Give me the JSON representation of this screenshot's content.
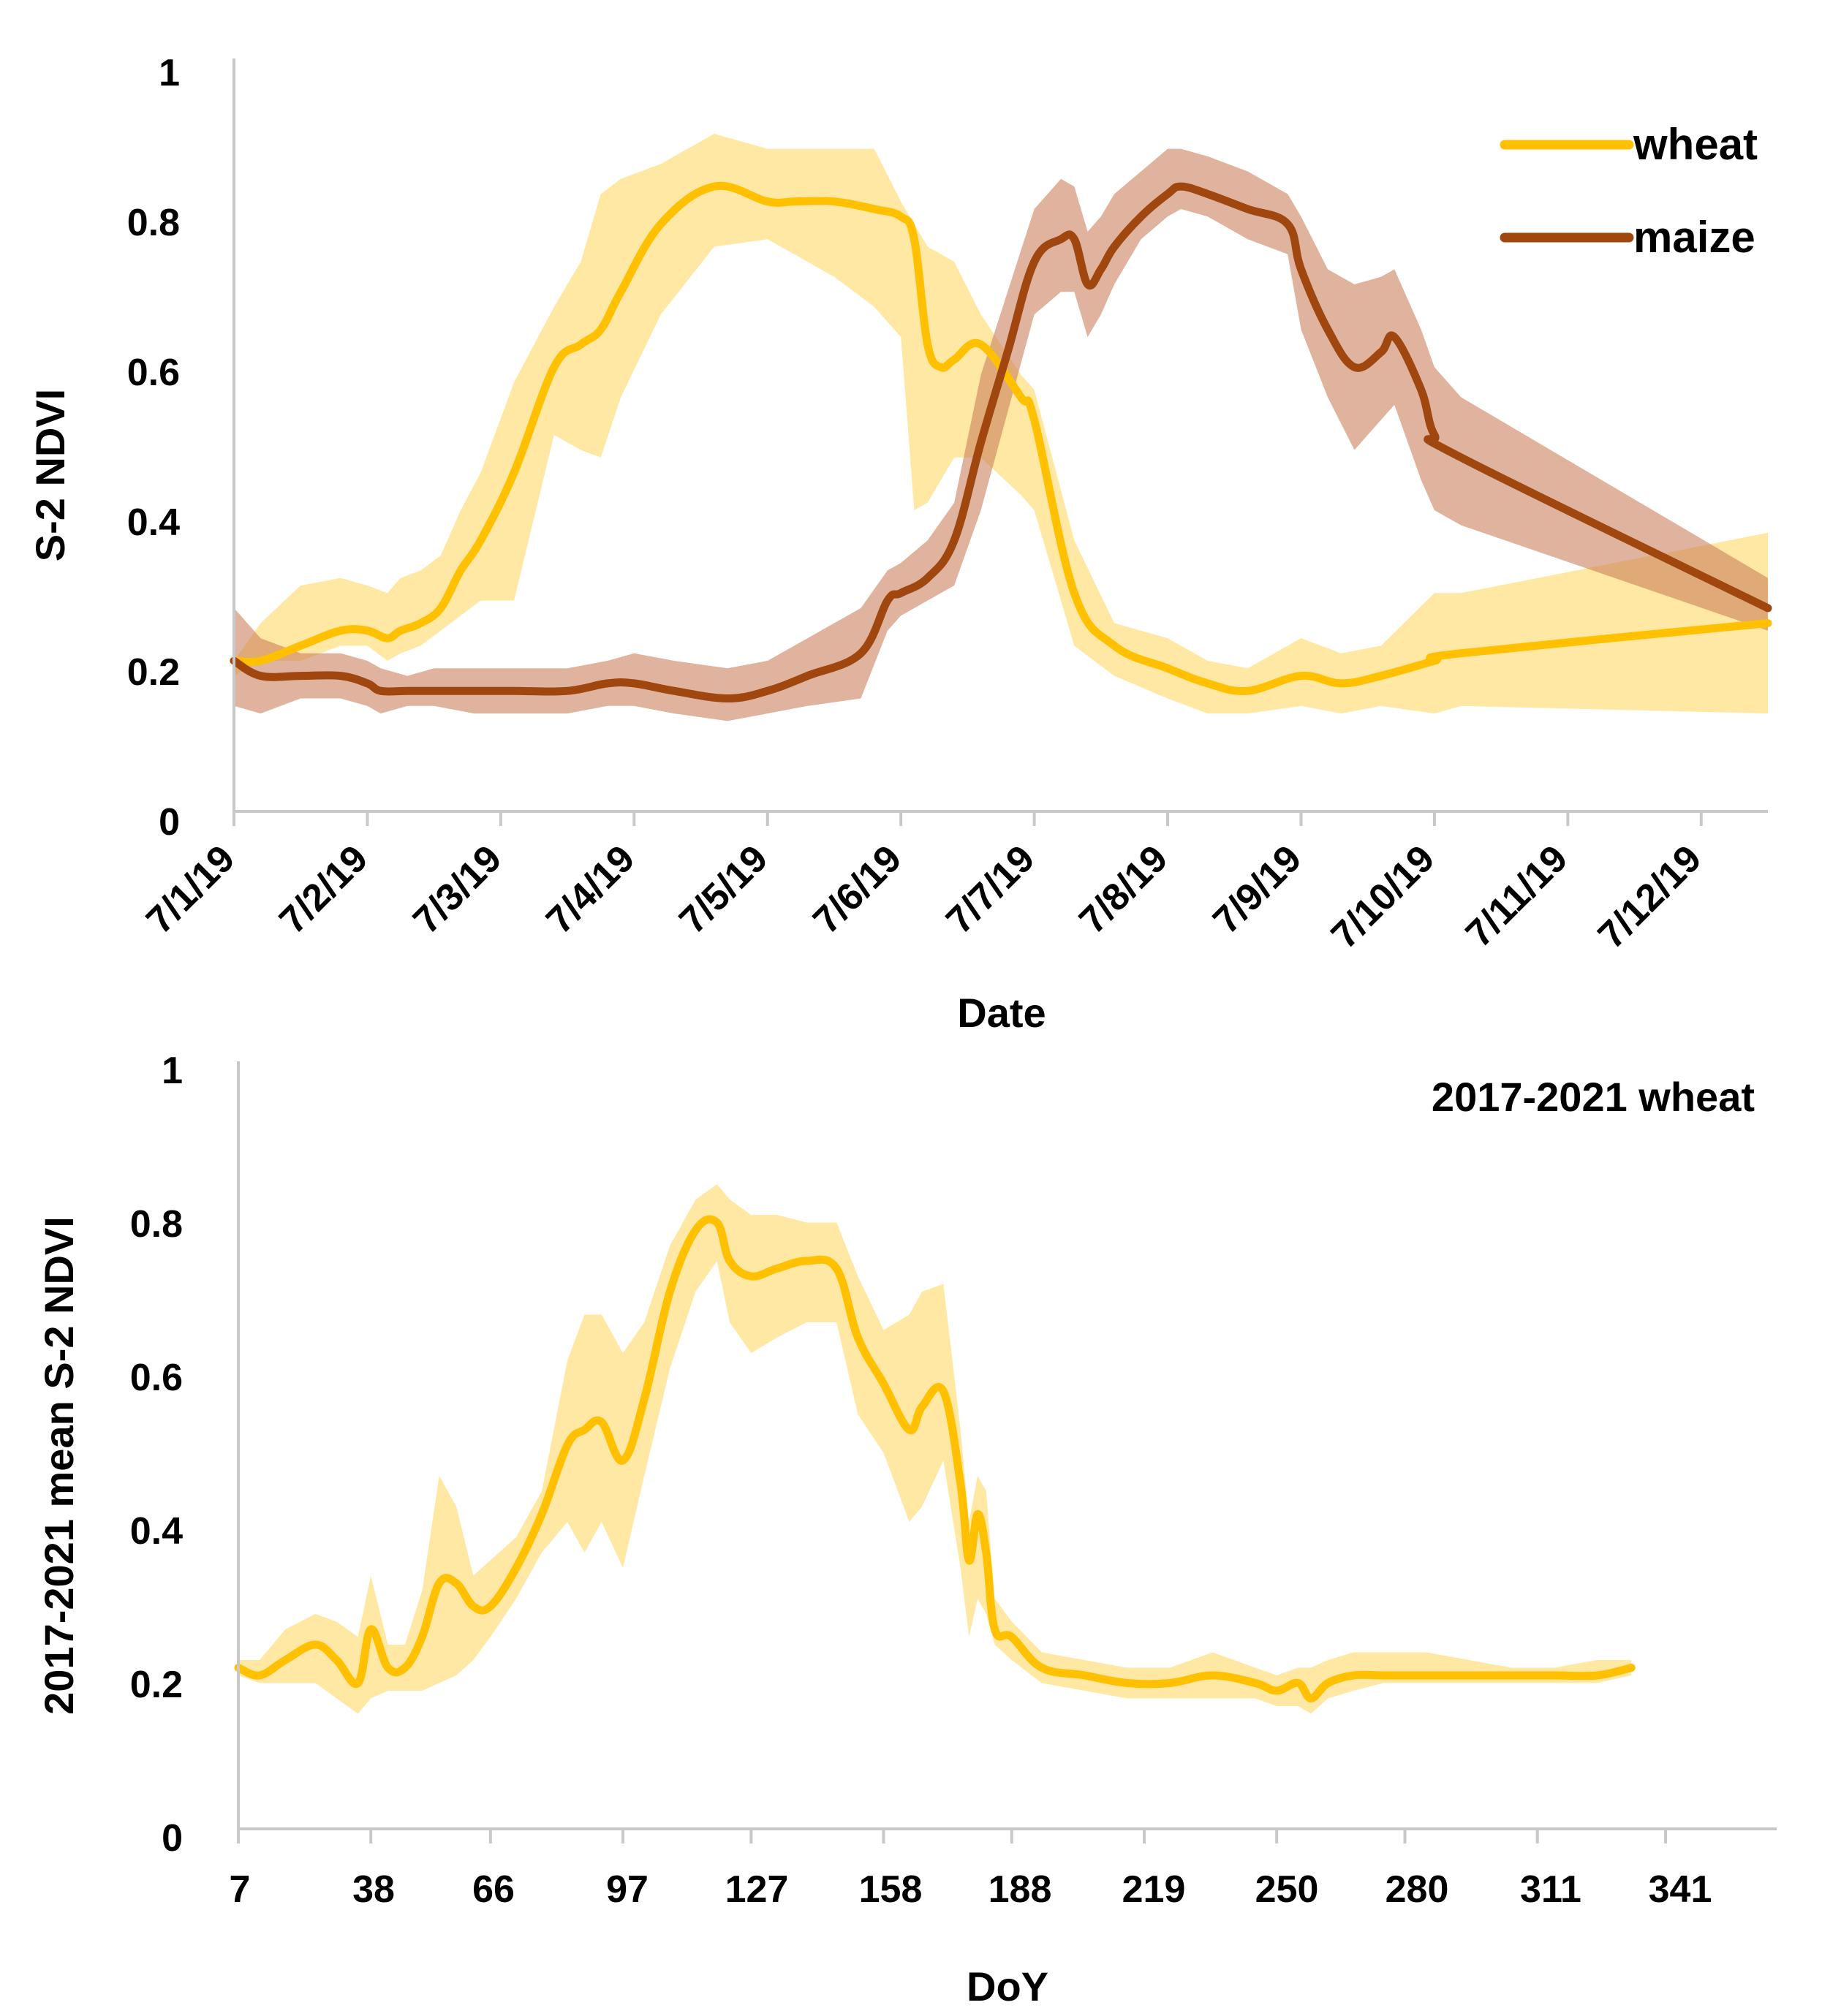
{
  "chart_data": [
    {
      "type": "area",
      "title": "",
      "xlabel": "Date",
      "ylabel": "S-2 NDVI",
      "ylim": [
        0,
        1
      ],
      "xlim": [
        0,
        11.5
      ],
      "x_ticks": [
        0,
        1,
        2,
        3,
        4,
        5,
        6,
        7,
        8,
        9,
        10,
        11
      ],
      "x_tick_labels": [
        "7/1/19",
        "7/2/19",
        "7/3/19",
        "7/4/19",
        "7/5/19",
        "7/6/19",
        "7/7/19",
        "7/8/19",
        "7/9/19",
        "7/10/19",
        "7/11/19",
        "7/12/19"
      ],
      "y_ticks": [
        0,
        0.2,
        0.4,
        0.6,
        0.8,
        1
      ],
      "y_tick_labels": [
        "0",
        "0.2",
        "0.4",
        "0.6",
        "0.8",
        "1"
      ],
      "legend": {
        "position": "top-right",
        "entries": [
          "wheat",
          "maize"
        ]
      },
      "series": [
        {
          "name": "wheat",
          "color": "#FFC000",
          "band_color": "#FFD966",
          "x": [
            0.0,
            0.2,
            0.5,
            0.8,
            1.0,
            1.15,
            1.25,
            1.4,
            1.55,
            1.7,
            1.85,
            2.1,
            2.4,
            2.6,
            2.75,
            2.9,
            3.2,
            3.6,
            4.0,
            4.2,
            4.5,
            4.8,
            5.0,
            5.1,
            5.2,
            5.3,
            5.4,
            5.6,
            5.9,
            6.0,
            6.3,
            6.6,
            7.0,
            7.3,
            7.6,
            8.0,
            8.3,
            8.6,
            9.0,
            9.2,
            11.5
          ],
          "values": [
            0.2,
            0.2,
            0.22,
            0.24,
            0.24,
            0.23,
            0.24,
            0.25,
            0.27,
            0.32,
            0.36,
            0.45,
            0.59,
            0.62,
            0.64,
            0.69,
            0.78,
            0.83,
            0.81,
            0.81,
            0.81,
            0.8,
            0.79,
            0.76,
            0.62,
            0.59,
            0.6,
            0.62,
            0.55,
            0.52,
            0.29,
            0.22,
            0.19,
            0.17,
            0.16,
            0.18,
            0.17,
            0.18,
            0.2,
            0.21,
            0.25
          ],
          "lower": [
            0.18,
            0.2,
            0.2,
            0.22,
            0.22,
            0.2,
            0.21,
            0.22,
            0.24,
            0.26,
            0.28,
            0.28,
            0.5,
            0.48,
            0.47,
            0.55,
            0.66,
            0.75,
            0.76,
            0.74,
            0.71,
            0.67,
            0.63,
            0.4,
            0.41,
            0.44,
            0.47,
            0.47,
            0.42,
            0.4,
            0.22,
            0.18,
            0.15,
            0.13,
            0.13,
            0.14,
            0.13,
            0.14,
            0.13,
            0.14,
            0.13
          ],
          "upper": [
            0.2,
            0.25,
            0.3,
            0.31,
            0.3,
            0.29,
            0.31,
            0.32,
            0.34,
            0.4,
            0.45,
            0.57,
            0.67,
            0.73,
            0.82,
            0.84,
            0.86,
            0.9,
            0.88,
            0.88,
            0.88,
            0.88,
            0.81,
            0.78,
            0.75,
            0.74,
            0.73,
            0.66,
            0.58,
            0.56,
            0.36,
            0.25,
            0.23,
            0.2,
            0.19,
            0.23,
            0.21,
            0.22,
            0.29,
            0.29,
            0.37
          ]
        },
        {
          "name": "maize",
          "color": "#A0470F",
          "band_color": "#C9805C",
          "x": [
            0.0,
            0.2,
            0.5,
            0.8,
            1.0,
            1.1,
            1.3,
            1.5,
            1.8,
            2.1,
            2.5,
            2.8,
            3.0,
            3.3,
            3.7,
            4.0,
            4.3,
            4.7,
            4.9,
            5.0,
            5.2,
            5.4,
            5.6,
            5.8,
            6.0,
            6.2,
            6.3,
            6.4,
            6.5,
            6.6,
            6.8,
            7.0,
            7.1,
            7.3,
            7.6,
            7.9,
            8.0,
            8.2,
            8.4,
            8.6,
            8.7,
            8.9,
            9.0,
            9.2,
            11.5
          ],
          "values": [
            0.2,
            0.18,
            0.18,
            0.18,
            0.17,
            0.16,
            0.16,
            0.16,
            0.16,
            0.16,
            0.16,
            0.17,
            0.17,
            0.16,
            0.15,
            0.16,
            0.18,
            0.21,
            0.28,
            0.29,
            0.31,
            0.36,
            0.49,
            0.61,
            0.73,
            0.76,
            0.76,
            0.7,
            0.72,
            0.75,
            0.79,
            0.82,
            0.83,
            0.82,
            0.8,
            0.78,
            0.72,
            0.64,
            0.59,
            0.61,
            0.63,
            0.56,
            0.5,
            0.47,
            0.27
          ],
          "lower": [
            0.14,
            0.13,
            0.15,
            0.15,
            0.14,
            0.13,
            0.14,
            0.14,
            0.13,
            0.13,
            0.13,
            0.14,
            0.14,
            0.13,
            0.12,
            0.13,
            0.14,
            0.15,
            0.24,
            0.26,
            0.28,
            0.3,
            0.4,
            0.53,
            0.66,
            0.69,
            0.69,
            0.63,
            0.66,
            0.7,
            0.76,
            0.79,
            0.8,
            0.79,
            0.76,
            0.74,
            0.64,
            0.55,
            0.48,
            0.52,
            0.54,
            0.44,
            0.4,
            0.38,
            0.24
          ],
          "upper": [
            0.27,
            0.23,
            0.21,
            0.21,
            0.2,
            0.19,
            0.18,
            0.19,
            0.19,
            0.19,
            0.19,
            0.2,
            0.21,
            0.2,
            0.19,
            0.2,
            0.23,
            0.27,
            0.32,
            0.33,
            0.36,
            0.41,
            0.58,
            0.69,
            0.8,
            0.84,
            0.83,
            0.77,
            0.79,
            0.82,
            0.85,
            0.88,
            0.88,
            0.87,
            0.85,
            0.82,
            0.79,
            0.72,
            0.7,
            0.71,
            0.72,
            0.64,
            0.59,
            0.55,
            0.31
          ]
        }
      ]
    },
    {
      "type": "area",
      "title": "2017-2021 wheat",
      "xlabel": "DoY",
      "ylabel": "2017-2021 mean  S-2  NDVI",
      "ylim": [
        0,
        1
      ],
      "xlim": [
        7,
        367
      ],
      "x_ticks": [
        7,
        38,
        66,
        97,
        127,
        158,
        188,
        219,
        250,
        280,
        311,
        341
      ],
      "x_tick_labels": [
        "7",
        "38",
        "66",
        "97",
        "127",
        "158",
        "188",
        "219",
        "250",
        "280",
        "311",
        "341"
      ],
      "y_ticks": [
        0,
        0.2,
        0.4,
        0.6,
        0.8,
        1
      ],
      "y_tick_labels": [
        "0",
        "0.2",
        "0.4",
        "0.6",
        "0.8",
        "1"
      ],
      "series": [
        {
          "name": "wheat",
          "color": "#FFC000",
          "band_color": "#FFD966",
          "x": [
            7,
            12,
            18,
            25,
            30,
            35,
            38,
            42,
            46,
            50,
            54,
            58,
            62,
            66,
            72,
            78,
            84,
            88,
            92,
            97,
            102,
            108,
            114,
            119,
            122,
            127,
            133,
            140,
            147,
            152,
            158,
            164,
            167,
            172,
            176,
            178,
            180,
            182,
            184,
            188,
            195,
            205,
            215,
            225,
            235,
            245,
            250,
            255,
            258,
            262,
            268,
            275,
            285,
            295,
            305,
            315,
            325,
            333
          ],
          "values": [
            0.21,
            0.2,
            0.22,
            0.24,
            0.22,
            0.19,
            0.26,
            0.21,
            0.21,
            0.25,
            0.32,
            0.32,
            0.29,
            0.29,
            0.34,
            0.41,
            0.5,
            0.52,
            0.53,
            0.48,
            0.56,
            0.7,
            0.78,
            0.79,
            0.74,
            0.72,
            0.73,
            0.74,
            0.73,
            0.64,
            0.58,
            0.52,
            0.55,
            0.57,
            0.45,
            0.35,
            0.41,
            0.36,
            0.26,
            0.25,
            0.21,
            0.2,
            0.19,
            0.19,
            0.2,
            0.19,
            0.18,
            0.19,
            0.17,
            0.19,
            0.2,
            0.2,
            0.2,
            0.2,
            0.2,
            0.2,
            0.2,
            0.21
          ],
          "lower": [
            0.2,
            0.19,
            0.19,
            0.19,
            0.17,
            0.15,
            0.17,
            0.18,
            0.18,
            0.18,
            0.19,
            0.2,
            0.22,
            0.25,
            0.3,
            0.36,
            0.4,
            0.36,
            0.4,
            0.34,
            0.46,
            0.6,
            0.7,
            0.74,
            0.66,
            0.62,
            0.64,
            0.66,
            0.66,
            0.54,
            0.49,
            0.4,
            0.42,
            0.48,
            0.34,
            0.25,
            0.3,
            0.28,
            0.24,
            0.22,
            0.19,
            0.18,
            0.17,
            0.17,
            0.17,
            0.17,
            0.16,
            0.16,
            0.15,
            0.17,
            0.18,
            0.19,
            0.19,
            0.19,
            0.19,
            0.19,
            0.19,
            0.2
          ],
          "upper": [
            0.22,
            0.22,
            0.26,
            0.28,
            0.27,
            0.25,
            0.33,
            0.24,
            0.24,
            0.31,
            0.46,
            0.42,
            0.33,
            0.35,
            0.38,
            0.44,
            0.61,
            0.67,
            0.67,
            0.62,
            0.66,
            0.76,
            0.82,
            0.84,
            0.82,
            0.8,
            0.8,
            0.79,
            0.79,
            0.72,
            0.65,
            0.67,
            0.7,
            0.71,
            0.52,
            0.4,
            0.46,
            0.44,
            0.3,
            0.27,
            0.23,
            0.22,
            0.21,
            0.21,
            0.23,
            0.21,
            0.2,
            0.21,
            0.21,
            0.22,
            0.23,
            0.23,
            0.23,
            0.22,
            0.21,
            0.21,
            0.22,
            0.22
          ]
        }
      ]
    }
  ]
}
